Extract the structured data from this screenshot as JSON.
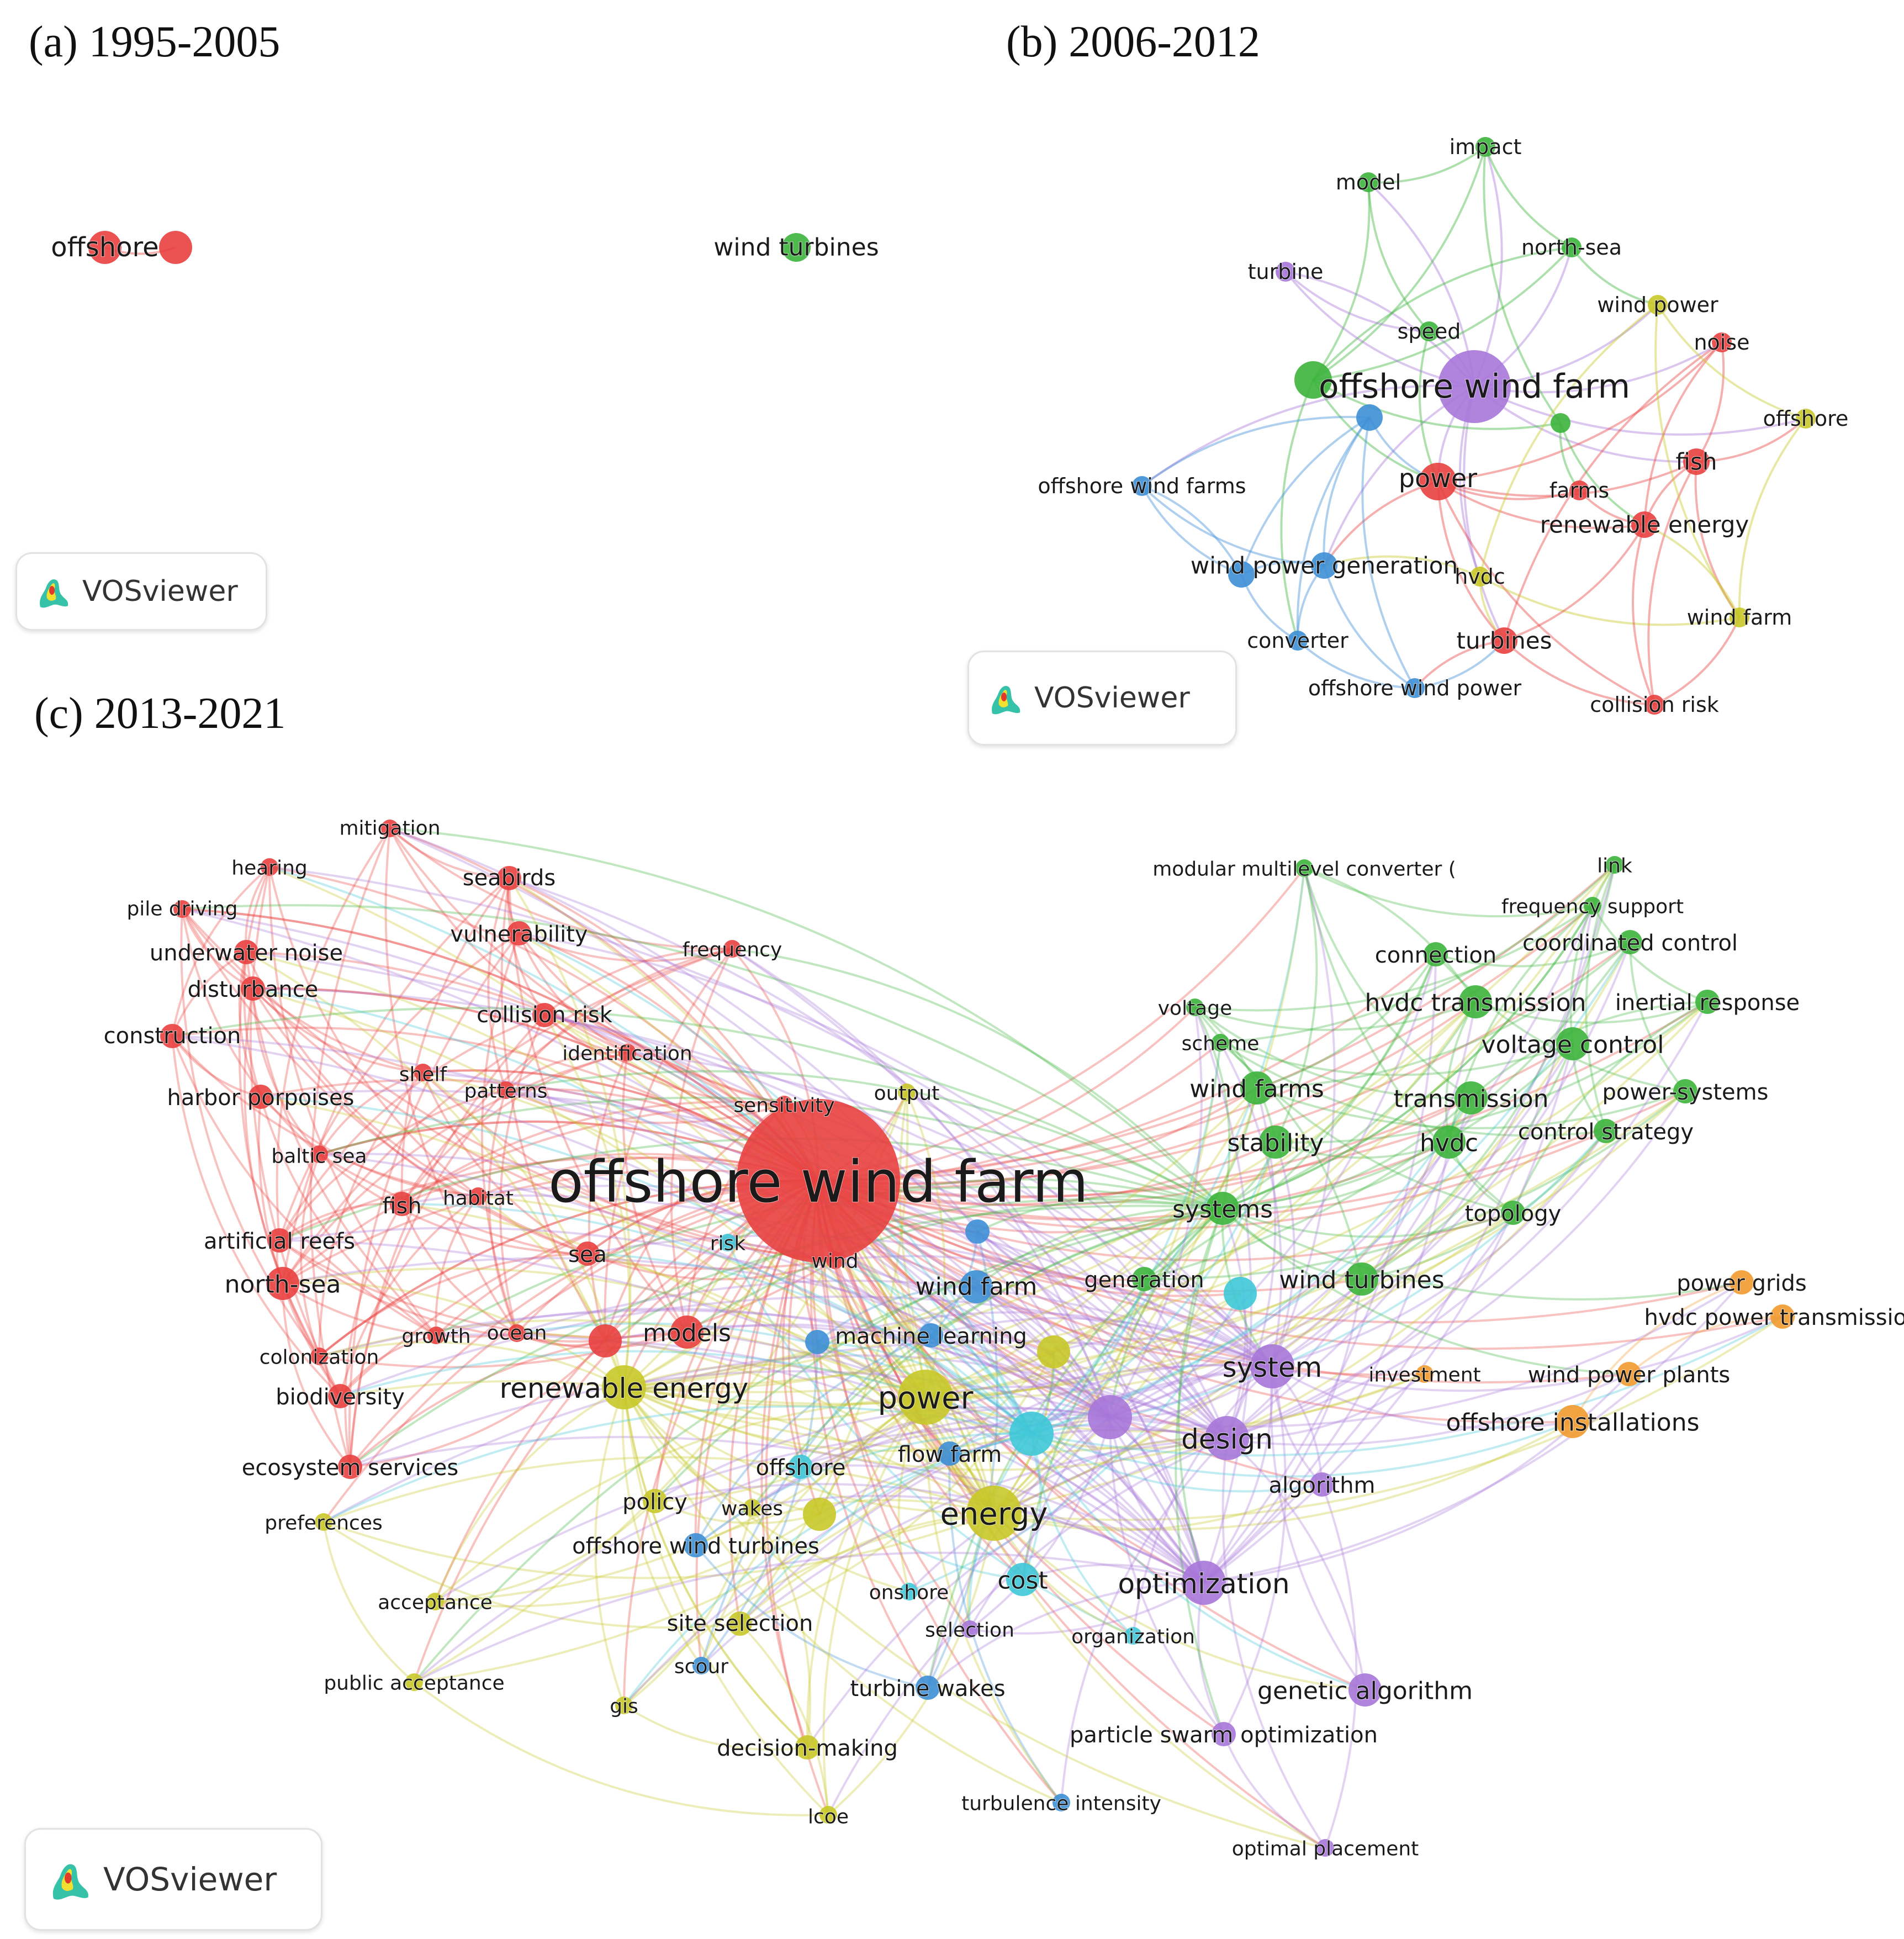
{
  "panels": {
    "a": {
      "title": "(a) 1995-2005"
    },
    "b": {
      "title": "(b) 2006-2012"
    },
    "c": {
      "title": "(c) 2013-2021"
    }
  },
  "badge_label": "VOSviewer",
  "cluster_colors": {
    "red": "#e8403f",
    "green": "#3cb43c",
    "blue": "#3d8fd6",
    "yellow": "#c8c828",
    "purple": "#a777d9",
    "cyan": "#3ec8d8",
    "orange": "#f29a2e"
  },
  "network_a": {
    "nodes": [
      {
        "id": "a1",
        "label": "offshore",
        "cluster": "red",
        "weight": 2
      },
      {
        "id": "a2",
        "label": "",
        "cluster": "red",
        "weight": 2
      },
      {
        "id": "a3",
        "label": "wind turbines",
        "cluster": "green",
        "weight": 1
      }
    ],
    "links": [
      [
        "a1",
        "a2"
      ]
    ]
  },
  "network_b": {
    "nodes": [
      {
        "id": "b1",
        "label": "impact",
        "cluster": "green",
        "weight": 1
      },
      {
        "id": "b2",
        "label": "model",
        "cluster": "green",
        "weight": 1
      },
      {
        "id": "b3",
        "label": "north-sea",
        "cluster": "green",
        "weight": 1
      },
      {
        "id": "b4",
        "label": "turbine",
        "cluster": "purple",
        "weight": 1
      },
      {
        "id": "b5",
        "label": "wind power",
        "cluster": "yellow",
        "weight": 1
      },
      {
        "id": "b6",
        "label": "speed",
        "cluster": "green",
        "weight": 1
      },
      {
        "id": "b7",
        "label": "noise",
        "cluster": "red",
        "weight": 1
      },
      {
        "id": "b8",
        "label": "offshore wind farm",
        "cluster": "purple",
        "weight": 6
      },
      {
        "id": "b9",
        "label": "",
        "cluster": "green",
        "weight": 3
      },
      {
        "id": "b10",
        "label": "offshore",
        "cluster": "yellow",
        "weight": 1
      },
      {
        "id": "b11",
        "label": "",
        "cluster": "blue",
        "weight": 2
      },
      {
        "id": "b12",
        "label": "",
        "cluster": "green",
        "weight": 1
      },
      {
        "id": "b13",
        "label": "fish",
        "cluster": "red",
        "weight": 2
      },
      {
        "id": "b14",
        "label": "offshore wind farms",
        "cluster": "blue",
        "weight": 1
      },
      {
        "id": "b15",
        "label": "power",
        "cluster": "red",
        "weight": 3
      },
      {
        "id": "b16",
        "label": "farms",
        "cluster": "red",
        "weight": 1
      },
      {
        "id": "b17",
        "label": "renewable energy",
        "cluster": "red",
        "weight": 2
      },
      {
        "id": "b18",
        "label": "wind power generation",
        "cluster": "blue",
        "weight": 2
      },
      {
        "id": "b19",
        "label": "",
        "cluster": "blue",
        "weight": 2
      },
      {
        "id": "b20",
        "label": "hvdc",
        "cluster": "yellow",
        "weight": 1
      },
      {
        "id": "b21",
        "label": "wind farm",
        "cluster": "yellow",
        "weight": 1
      },
      {
        "id": "b22",
        "label": "converter",
        "cluster": "blue",
        "weight": 1
      },
      {
        "id": "b23",
        "label": "turbines",
        "cluster": "red",
        "weight": 2
      },
      {
        "id": "b24",
        "label": "offshore wind power",
        "cluster": "blue",
        "weight": 1
      },
      {
        "id": "b25",
        "label": "collision risk",
        "cluster": "red",
        "weight": 1
      }
    ],
    "links": [
      [
        "b8",
        "b1"
      ],
      [
        "b8",
        "b2"
      ],
      [
        "b8",
        "b3"
      ],
      [
        "b8",
        "b4"
      ],
      [
        "b8",
        "b5"
      ],
      [
        "b8",
        "b6"
      ],
      [
        "b8",
        "b7"
      ],
      [
        "b8",
        "b10"
      ],
      [
        "b8",
        "b13"
      ],
      [
        "b8",
        "b15"
      ],
      [
        "b8",
        "b18"
      ],
      [
        "b8",
        "b20"
      ],
      [
        "b8",
        "b23"
      ],
      [
        "b8",
        "b14"
      ],
      [
        "b9",
        "b1"
      ],
      [
        "b9",
        "b2"
      ],
      [
        "b9",
        "b3"
      ],
      [
        "b9",
        "b15"
      ],
      [
        "b9",
        "b12"
      ],
      [
        "b9",
        "b22"
      ],
      [
        "b2",
        "b1"
      ],
      [
        "b2",
        "b6"
      ],
      [
        "b1",
        "b3"
      ],
      [
        "b3",
        "b5"
      ],
      [
        "b3",
        "b9"
      ],
      [
        "b1",
        "b12"
      ],
      [
        "b6",
        "b15"
      ],
      [
        "b15",
        "b13"
      ],
      [
        "b15",
        "b16"
      ],
      [
        "b15",
        "b17"
      ],
      [
        "b15",
        "b23"
      ],
      [
        "b15",
        "b18"
      ],
      [
        "b15",
        "b7"
      ],
      [
        "b15",
        "b25"
      ],
      [
        "b13",
        "b7"
      ],
      [
        "b13",
        "b17"
      ],
      [
        "b13",
        "b25"
      ],
      [
        "b13",
        "b10"
      ],
      [
        "b13",
        "b21"
      ],
      [
        "b7",
        "b17"
      ],
      [
        "b7",
        "b23"
      ],
      [
        "b5",
        "b10"
      ],
      [
        "b5",
        "b21"
      ],
      [
        "b10",
        "b21"
      ],
      [
        "b5",
        "b20"
      ],
      [
        "b20",
        "b18"
      ],
      [
        "b20",
        "b21"
      ],
      [
        "b20",
        "b23"
      ],
      [
        "b11",
        "b14"
      ],
      [
        "b11",
        "b18"
      ],
      [
        "b11",
        "b19"
      ],
      [
        "b11",
        "b22"
      ],
      [
        "b11",
        "b24"
      ],
      [
        "b14",
        "b18"
      ],
      [
        "b14",
        "b19"
      ],
      [
        "b18",
        "b19"
      ],
      [
        "b18",
        "b22"
      ],
      [
        "b18",
        "b24"
      ],
      [
        "b19",
        "b22"
      ],
      [
        "b22",
        "b24"
      ],
      [
        "b24",
        "b23"
      ],
      [
        "b19",
        "b14"
      ],
      [
        "b23",
        "b25"
      ],
      [
        "b23",
        "b17"
      ],
      [
        "b16",
        "b17"
      ],
      [
        "b17",
        "b25"
      ],
      [
        "b23",
        "b24"
      ],
      [
        "b4",
        "b8"
      ],
      [
        "b4",
        "b6"
      ],
      [
        "b12",
        "b16"
      ],
      [
        "b12",
        "b17"
      ],
      [
        "b11",
        "b15"
      ],
      [
        "b25",
        "b21"
      ],
      [
        "b21",
        "b17"
      ]
    ]
  },
  "network_c": {
    "nodes": [
      {
        "id": "c1",
        "label": "offshore wind farm",
        "cluster": "red",
        "weight": 10
      },
      {
        "id": "c2",
        "label": "mitigation",
        "cluster": "red",
        "weight": 1
      },
      {
        "id": "c3",
        "label": "hearing",
        "cluster": "red",
        "weight": 1
      },
      {
        "id": "c4",
        "label": "seabirds",
        "cluster": "red",
        "weight": 2
      },
      {
        "id": "c5",
        "label": "pile driving",
        "cluster": "red",
        "weight": 1
      },
      {
        "id": "c6",
        "label": "vulnerability",
        "cluster": "red",
        "weight": 2
      },
      {
        "id": "c7",
        "label": "underwater noise",
        "cluster": "red",
        "weight": 2
      },
      {
        "id": "c8",
        "label": "frequency",
        "cluster": "red",
        "weight": 1
      },
      {
        "id": "c9",
        "label": "disturbance",
        "cluster": "red",
        "weight": 2
      },
      {
        "id": "c10",
        "label": "collision risk",
        "cluster": "red",
        "weight": 2
      },
      {
        "id": "c11",
        "label": "construction",
        "cluster": "red",
        "weight": 2
      },
      {
        "id": "c12",
        "label": "identification",
        "cluster": "red",
        "weight": 1
      },
      {
        "id": "c13",
        "label": "shelf",
        "cluster": "red",
        "weight": 1
      },
      {
        "id": "c14",
        "label": "patterns",
        "cluster": "red",
        "weight": 1
      },
      {
        "id": "c15",
        "label": "harbor porpoises",
        "cluster": "red",
        "weight": 2
      },
      {
        "id": "c16",
        "label": "sensitivity",
        "cluster": "red",
        "weight": 1
      },
      {
        "id": "c17",
        "label": "baltic sea",
        "cluster": "red",
        "weight": 1
      },
      {
        "id": "c18",
        "label": "fish",
        "cluster": "red",
        "weight": 2
      },
      {
        "id": "c19",
        "label": "habitat",
        "cluster": "red",
        "weight": 1
      },
      {
        "id": "c20",
        "label": "artificial reefs",
        "cluster": "red",
        "weight": 2
      },
      {
        "id": "c21",
        "label": "sea",
        "cluster": "red",
        "weight": 2
      },
      {
        "id": "c22",
        "label": "north-sea",
        "cluster": "red",
        "weight": 3
      },
      {
        "id": "c23",
        "label": "growth",
        "cluster": "red",
        "weight": 1
      },
      {
        "id": "c24",
        "label": "ocean",
        "cluster": "red",
        "weight": 1
      },
      {
        "id": "c25",
        "label": "colonization",
        "cluster": "red",
        "weight": 1
      },
      {
        "id": "c26",
        "label": "models",
        "cluster": "red",
        "weight": 3
      },
      {
        "id": "c27",
        "label": "biodiversity",
        "cluster": "red",
        "weight": 2
      },
      {
        "id": "c28",
        "label": "renewable energy",
        "cluster": "yellow",
        "weight": 4
      },
      {
        "id": "c29",
        "label": "ecosystem services",
        "cluster": "red",
        "weight": 2
      },
      {
        "id": "c30",
        "label": "preferences",
        "cluster": "yellow",
        "weight": 1
      },
      {
        "id": "c31",
        "label": "acceptance",
        "cluster": "yellow",
        "weight": 1
      },
      {
        "id": "c32",
        "label": "public acceptance",
        "cluster": "yellow",
        "weight": 1
      },
      {
        "id": "c33",
        "label": "gis",
        "cluster": "yellow",
        "weight": 1
      },
      {
        "id": "c34",
        "label": "lcoe",
        "cluster": "yellow",
        "weight": 1
      },
      {
        "id": "c35",
        "label": "policy",
        "cluster": "yellow",
        "weight": 2
      },
      {
        "id": "c36",
        "label": "site selection",
        "cluster": "yellow",
        "weight": 2
      },
      {
        "id": "c37",
        "label": "decision-making",
        "cluster": "yellow",
        "weight": 2
      },
      {
        "id": "c38",
        "label": "risk",
        "cluster": "cyan",
        "weight": 1
      },
      {
        "id": "c39",
        "label": "wind",
        "cluster": "red",
        "weight": 1
      },
      {
        "id": "c40",
        "label": "output",
        "cluster": "yellow",
        "weight": 1
      },
      {
        "id": "c41",
        "label": "wind farm",
        "cluster": "blue",
        "weight": 3
      },
      {
        "id": "c42",
        "label": "machine learning",
        "cluster": "blue",
        "weight": 2
      },
      {
        "id": "c43",
        "label": "power",
        "cluster": "yellow",
        "weight": 5
      },
      {
        "id": "c44",
        "label": "offshore",
        "cluster": "cyan",
        "weight": 2
      },
      {
        "id": "c45",
        "label": "flow farm",
        "cluster": "blue",
        "weight": 2
      },
      {
        "id": "c46",
        "label": "energy",
        "cluster": "yellow",
        "weight": 5
      },
      {
        "id": "c47",
        "label": "wakes",
        "cluster": "yellow",
        "weight": 1
      },
      {
        "id": "c48",
        "label": "offshore wind turbines",
        "cluster": "blue",
        "weight": 2
      },
      {
        "id": "c49",
        "label": "onshore",
        "cluster": "cyan",
        "weight": 1
      },
      {
        "id": "c50",
        "label": "cost",
        "cluster": "cyan",
        "weight": 3
      },
      {
        "id": "c51",
        "label": "selection",
        "cluster": "purple",
        "weight": 1
      },
      {
        "id": "c52",
        "label": "scour",
        "cluster": "blue",
        "weight": 1
      },
      {
        "id": "c53",
        "label": "turbine wakes",
        "cluster": "blue",
        "weight": 2
      },
      {
        "id": "c54",
        "label": "organization",
        "cluster": "cyan",
        "weight": 1
      },
      {
        "id": "c55",
        "label": "turbulence intensity",
        "cluster": "blue",
        "weight": 1
      },
      {
        "id": "c56",
        "label": "particle swarm optimization",
        "cluster": "purple",
        "weight": 2
      },
      {
        "id": "c57",
        "label": "genetic algorithm",
        "cluster": "purple",
        "weight": 3
      },
      {
        "id": "c58",
        "label": "optimal placement",
        "cluster": "purple",
        "weight": 1
      },
      {
        "id": "c59",
        "label": "optimization",
        "cluster": "purple",
        "weight": 4
      },
      {
        "id": "c60",
        "label": "algorithm",
        "cluster": "purple",
        "weight": 2
      },
      {
        "id": "c61",
        "label": "design",
        "cluster": "purple",
        "weight": 4
      },
      {
        "id": "c62",
        "label": "system",
        "cluster": "purple",
        "weight": 4
      },
      {
        "id": "c63",
        "label": "generation",
        "cluster": "green",
        "weight": 2
      },
      {
        "id": "c64",
        "label": "systems",
        "cluster": "green",
        "weight": 3
      },
      {
        "id": "c65",
        "label": "wind turbines",
        "cluster": "green",
        "weight": 3
      },
      {
        "id": "c66",
        "label": "stability",
        "cluster": "green",
        "weight": 3
      },
      {
        "id": "c67",
        "label": "wind farms",
        "cluster": "green",
        "weight": 3
      },
      {
        "id": "c68",
        "label": "voltage",
        "cluster": "green",
        "weight": 1
      },
      {
        "id": "c69",
        "label": "scheme",
        "cluster": "green",
        "weight": 1
      },
      {
        "id": "c70",
        "label": "hvdc transmission",
        "cluster": "green",
        "weight": 3
      },
      {
        "id": "c71",
        "label": "connection",
        "cluster": "green",
        "weight": 2
      },
      {
        "id": "c72",
        "label": "modular multilevel converter (",
        "cluster": "green",
        "weight": 1
      },
      {
        "id": "c73",
        "label": "link",
        "cluster": "green",
        "weight": 1
      },
      {
        "id": "c74",
        "label": "frequency support",
        "cluster": "green",
        "weight": 1
      },
      {
        "id": "c75",
        "label": "coordinated control",
        "cluster": "green",
        "weight": 2
      },
      {
        "id": "c76",
        "label": "inertial response",
        "cluster": "green",
        "weight": 2
      },
      {
        "id": "c77",
        "label": "voltage control",
        "cluster": "green",
        "weight": 3
      },
      {
        "id": "c78",
        "label": "transmission",
        "cluster": "green",
        "weight": 3
      },
      {
        "id": "c79",
        "label": "power-systems",
        "cluster": "green",
        "weight": 2
      },
      {
        "id": "c80",
        "label": "hvdc",
        "cluster": "green",
        "weight": 3
      },
      {
        "id": "c81",
        "label": "control strategy",
        "cluster": "green",
        "weight": 2
      },
      {
        "id": "c82",
        "label": "topology",
        "cluster": "green",
        "weight": 2
      },
      {
        "id": "c83",
        "label": "power grids",
        "cluster": "orange",
        "weight": 2
      },
      {
        "id": "c84",
        "label": "hvdc power transmission",
        "cluster": "orange",
        "weight": 2
      },
      {
        "id": "c85",
        "label": "investment",
        "cluster": "orange",
        "weight": 1
      },
      {
        "id": "c86",
        "label": "wind power plants",
        "cluster": "orange",
        "weight": 2
      },
      {
        "id": "c87",
        "label": "offshore installations",
        "cluster": "orange",
        "weight": 3
      },
      {
        "id": "c88",
        "label": "",
        "cluster": "cyan",
        "weight": 4
      },
      {
        "id": "c89",
        "label": "",
        "cluster": "purple",
        "weight": 4
      },
      {
        "id": "c90",
        "label": "",
        "cluster": "yellow",
        "weight": 3
      },
      {
        "id": "c91",
        "label": "",
        "cluster": "cyan",
        "weight": 3
      },
      {
        "id": "c92",
        "label": "",
        "cluster": "blue",
        "weight": 2
      },
      {
        "id": "c93",
        "label": "",
        "cluster": "blue",
        "weight": 2
      },
      {
        "id": "c94",
        "label": "",
        "cluster": "yellow",
        "weight": 3
      },
      {
        "id": "c95",
        "label": "",
        "cluster": "red",
        "weight": 3
      }
    ]
  }
}
